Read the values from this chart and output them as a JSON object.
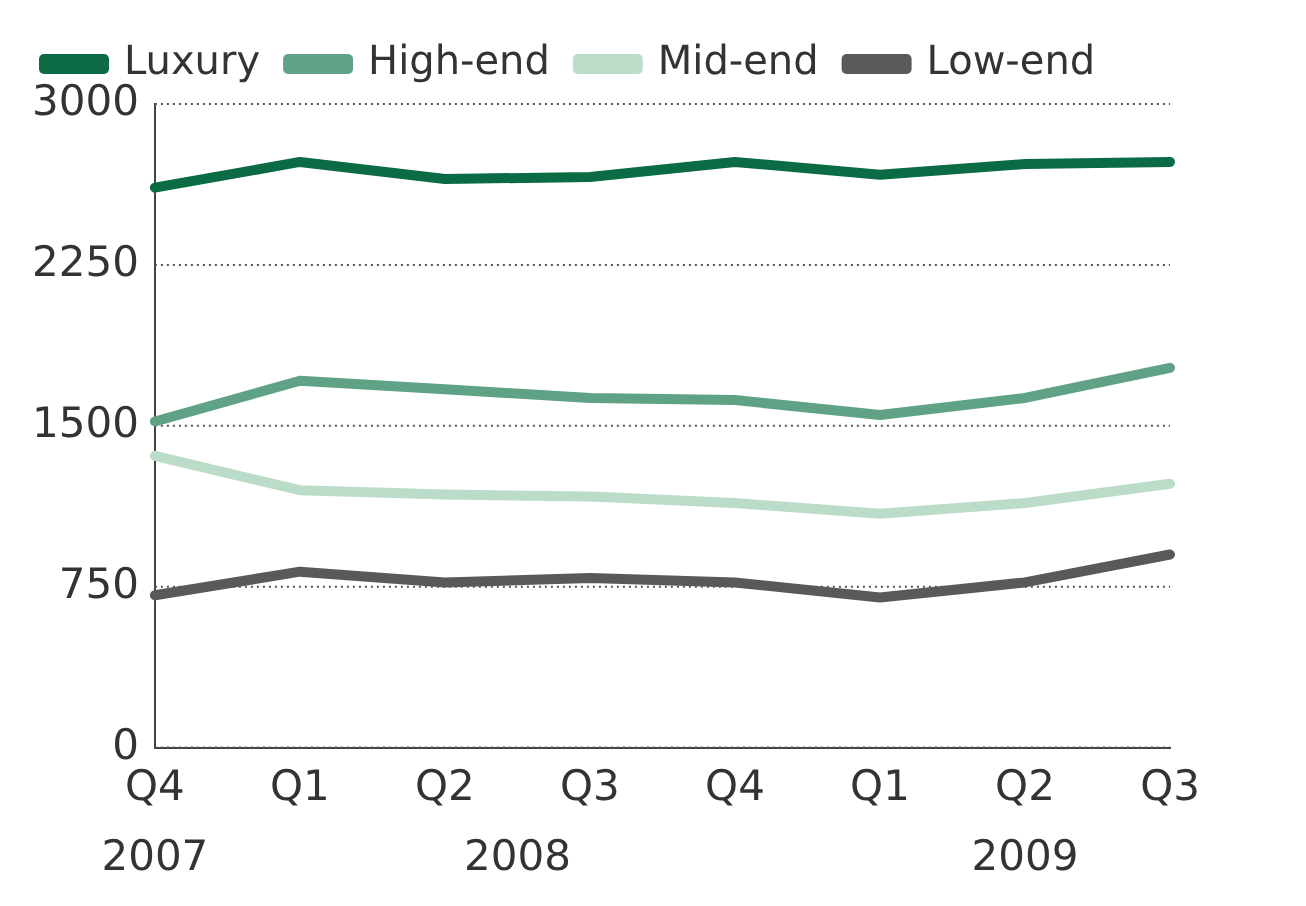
{
  "chart_data": {
    "type": "line",
    "categories": [
      "Q4",
      "Q1",
      "Q2",
      "Q3",
      "Q4",
      "Q1",
      "Q2",
      "Q3"
    ],
    "series": [
      {
        "name": "Luxury",
        "color": "#0b6b45",
        "values": [
          2610,
          2730,
          2650,
          2660,
          2730,
          2670,
          2720,
          2730
        ]
      },
      {
        "name": "High-end",
        "color": "#5fa285",
        "values": [
          1520,
          1710,
          1670,
          1630,
          1620,
          1550,
          1630,
          1770
        ]
      },
      {
        "name": "Mid-end",
        "color": "#bcdcca",
        "values": [
          1360,
          1200,
          1180,
          1170,
          1140,
          1090,
          1140,
          1230
        ]
      },
      {
        "name": "Low-end",
        "color": "#595959",
        "values": [
          710,
          820,
          770,
          790,
          770,
          700,
          770,
          900
        ]
      }
    ],
    "annotations": [
      "2007",
      "2008",
      "2009"
    ],
    "ylim": [
      0,
      3000
    ],
    "yticks": [
      0,
      750,
      1500,
      2250,
      3000
    ],
    "grid": "y",
    "legend": "top",
    "marker": "none",
    "line_style": "solid"
  }
}
